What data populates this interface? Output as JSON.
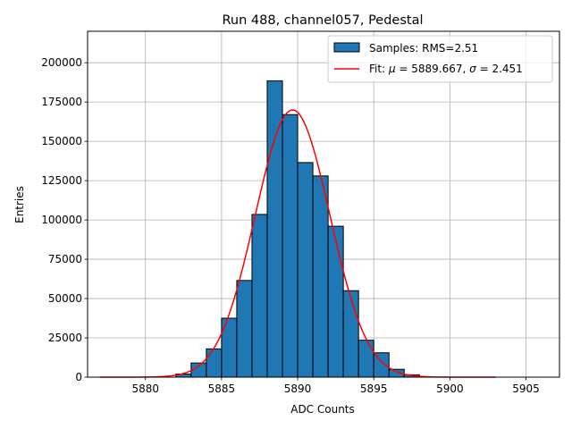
{
  "chart_data": {
    "type": "bar",
    "title": "Run 488, channel057, Pedestal",
    "xlabel": "ADC Counts",
    "ylabel": "Entries",
    "xlim": [
      5876.2,
      5907.2
    ],
    "ylim": [
      0,
      220000
    ],
    "xticks": [
      5880,
      5885,
      5890,
      5895,
      5900,
      5905
    ],
    "yticks": [
      0,
      25000,
      50000,
      75000,
      100000,
      125000,
      150000,
      175000,
      200000
    ],
    "grid": true,
    "legend_position": "top-right",
    "histogram": {
      "name": "Samples: RMS=2.51",
      "color": "#1f77b4",
      "edge_color": "#000000",
      "bins": [
        {
          "x0": 5882,
          "x1": 5883,
          "value": 2000
        },
        {
          "x0": 5883,
          "x1": 5884,
          "value": 9000
        },
        {
          "x0": 5884,
          "x1": 5885,
          "value": 18000
        },
        {
          "x0": 5885,
          "x1": 5886,
          "value": 37500
        },
        {
          "x0": 5886,
          "x1": 5887,
          "value": 61500
        },
        {
          "x0": 5887,
          "x1": 5888,
          "value": 103500
        },
        {
          "x0": 5888,
          "x1": 5889,
          "value": 188500
        },
        {
          "x0": 5889,
          "x1": 5890,
          "value": 167000
        },
        {
          "x0": 5890,
          "x1": 5891,
          "value": 136500
        },
        {
          "x0": 5891,
          "x1": 5892,
          "value": 128000
        },
        {
          "x0": 5892,
          "x1": 5893,
          "value": 96000
        },
        {
          "x0": 5893,
          "x1": 5894,
          "value": 55000
        },
        {
          "x0": 5894,
          "x1": 5895,
          "value": 23500
        },
        {
          "x0": 5895,
          "x1": 5896,
          "value": 15500
        },
        {
          "x0": 5896,
          "x1": 5897,
          "value": 5000
        },
        {
          "x0": 5897,
          "x1": 5898,
          "value": 1500
        }
      ]
    },
    "fit": {
      "name_prefix": "Fit: ",
      "mu_symbol": "μ",
      "mu_text": " = 5889.667, ",
      "sigma_symbol": "σ",
      "sigma_text": " = 2.451",
      "color": "#ff0000",
      "mu": 5889.667,
      "sigma": 2.451,
      "amplitude": 170000,
      "x_range": [
        5877,
        5903
      ]
    }
  }
}
